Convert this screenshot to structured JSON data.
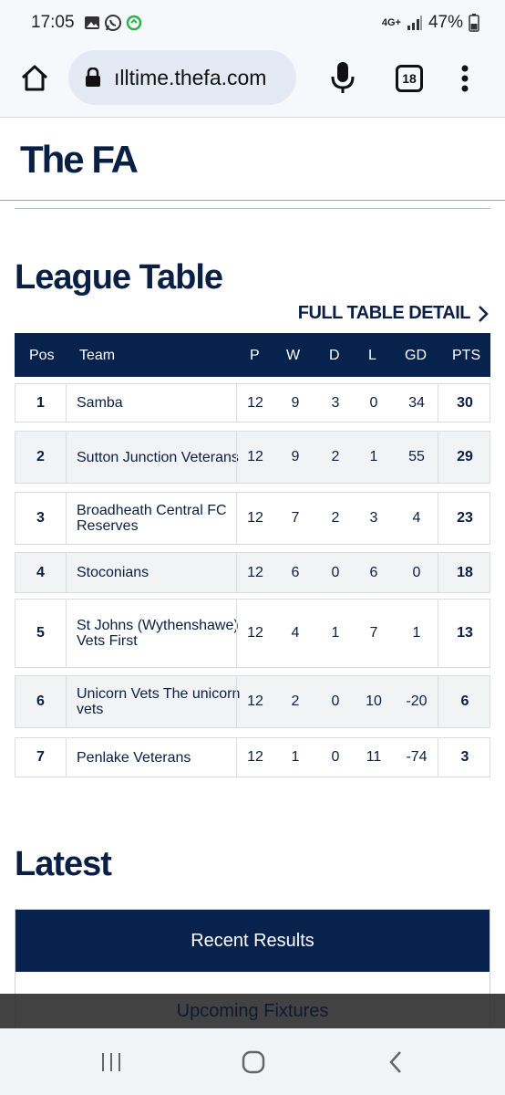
{
  "status_bar": {
    "time": "17:05",
    "network": "4G+",
    "battery": "47%",
    "icons": [
      "gallery-icon",
      "whatsapp-icon",
      "sync-icon",
      "signal-icon",
      "battery-icon"
    ]
  },
  "browser": {
    "url": "ılltime.thefa.com",
    "tab_count": "18",
    "icons": [
      "home-icon",
      "lock-icon",
      "mic-icon",
      "kebab-menu-icon"
    ]
  },
  "site": {
    "logo": "The FA"
  },
  "league": {
    "heading": "League Table",
    "full_link": "FULL TABLE DETAIL",
    "columns": {
      "pos": "Pos",
      "team": "Team",
      "p": "P",
      "w": "W",
      "d": "D",
      "l": "L",
      "gd": "GD",
      "pts": "PTS"
    },
    "rows": [
      {
        "pos": "1",
        "team": "Samba",
        "p": "12",
        "w": "9",
        "d": "3",
        "l": "0",
        "gd": "34",
        "pts": "30"
      },
      {
        "pos": "2",
        "team": "Sutton Junction Veterans",
        "p": "12",
        "w": "9",
        "d": "2",
        "l": "1",
        "gd": "55",
        "pts": "29"
      },
      {
        "pos": "3",
        "team": "Broadheath Central FC Reserves",
        "p": "12",
        "w": "7",
        "d": "2",
        "l": "3",
        "gd": "4",
        "pts": "23"
      },
      {
        "pos": "4",
        "team": "Stoconians",
        "p": "12",
        "w": "6",
        "d": "0",
        "l": "6",
        "gd": "0",
        "pts": "18"
      },
      {
        "pos": "5",
        "team": "St Johns (Wythenshawe) Vets First",
        "p": "12",
        "w": "4",
        "d": "1",
        "l": "7",
        "gd": "1",
        "pts": "13"
      },
      {
        "pos": "6",
        "team": "Unicorn Vets The unicorn vets",
        "p": "12",
        "w": "2",
        "d": "0",
        "l": "10",
        "gd": "-20",
        "pts": "6"
      },
      {
        "pos": "7",
        "team": "Penlake Veterans",
        "p": "12",
        "w": "1",
        "d": "0",
        "l": "11",
        "gd": "-74",
        "pts": "3"
      }
    ]
  },
  "latest": {
    "heading": "Latest",
    "tab_recent": "Recent Results",
    "tab_upcoming": "Upcoming Fixtures"
  },
  "nav_bar": {
    "icons": [
      "recents-icon",
      "home-circle-icon",
      "back-icon"
    ]
  }
}
